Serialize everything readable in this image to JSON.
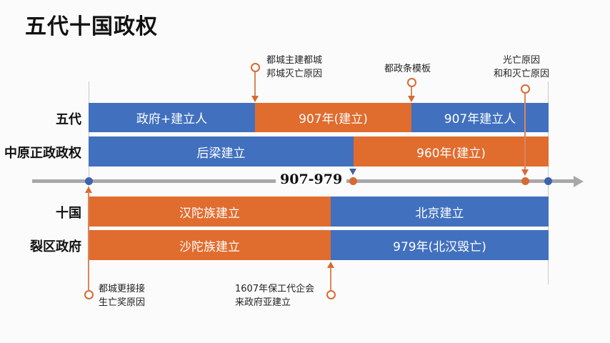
{
  "title": "五代十国政权",
  "colors": {
    "blue": "#4170be",
    "orange": "#e06c2e",
    "axis": "#a8a8a8"
  },
  "rows": [
    {
      "label": "五代",
      "segments": [
        {
          "text": "政府+建立人",
          "color": "blue"
        },
        {
          "text": "907年(建立)",
          "color": "orange"
        },
        {
          "text": "907年建立人",
          "color": "blue"
        }
      ]
    },
    {
      "label": "中原正政政权",
      "segments": [
        {
          "text": "后梁建立",
          "color": "blue"
        },
        {
          "text": "960年(建立)",
          "color": "orange"
        }
      ]
    },
    {
      "label": "十国",
      "segments": [
        {
          "text": "汉陀族建立",
          "color": "orange"
        },
        {
          "text": "北京建立",
          "color": "blue"
        }
      ]
    },
    {
      "label": "裂区政府",
      "segments": [
        {
          "text": "沙陀族建立",
          "color": "orange"
        },
        {
          "text": "979年(北汉毁亡)",
          "color": "blue"
        }
      ]
    }
  ],
  "axis": {
    "label": "907-979"
  },
  "callouts": {
    "top1": [
      "都城主建都城",
      "邦城灭亡原因"
    ],
    "top2": [
      "都政条模板"
    ],
    "top3": [
      "光亡原因",
      "和和灭亡原因"
    ],
    "bottom1": [
      "都城更接接",
      "生亡奖原因"
    ],
    "bottom2": [
      "1607年保工代企会",
      "来政府亚建立"
    ]
  }
}
